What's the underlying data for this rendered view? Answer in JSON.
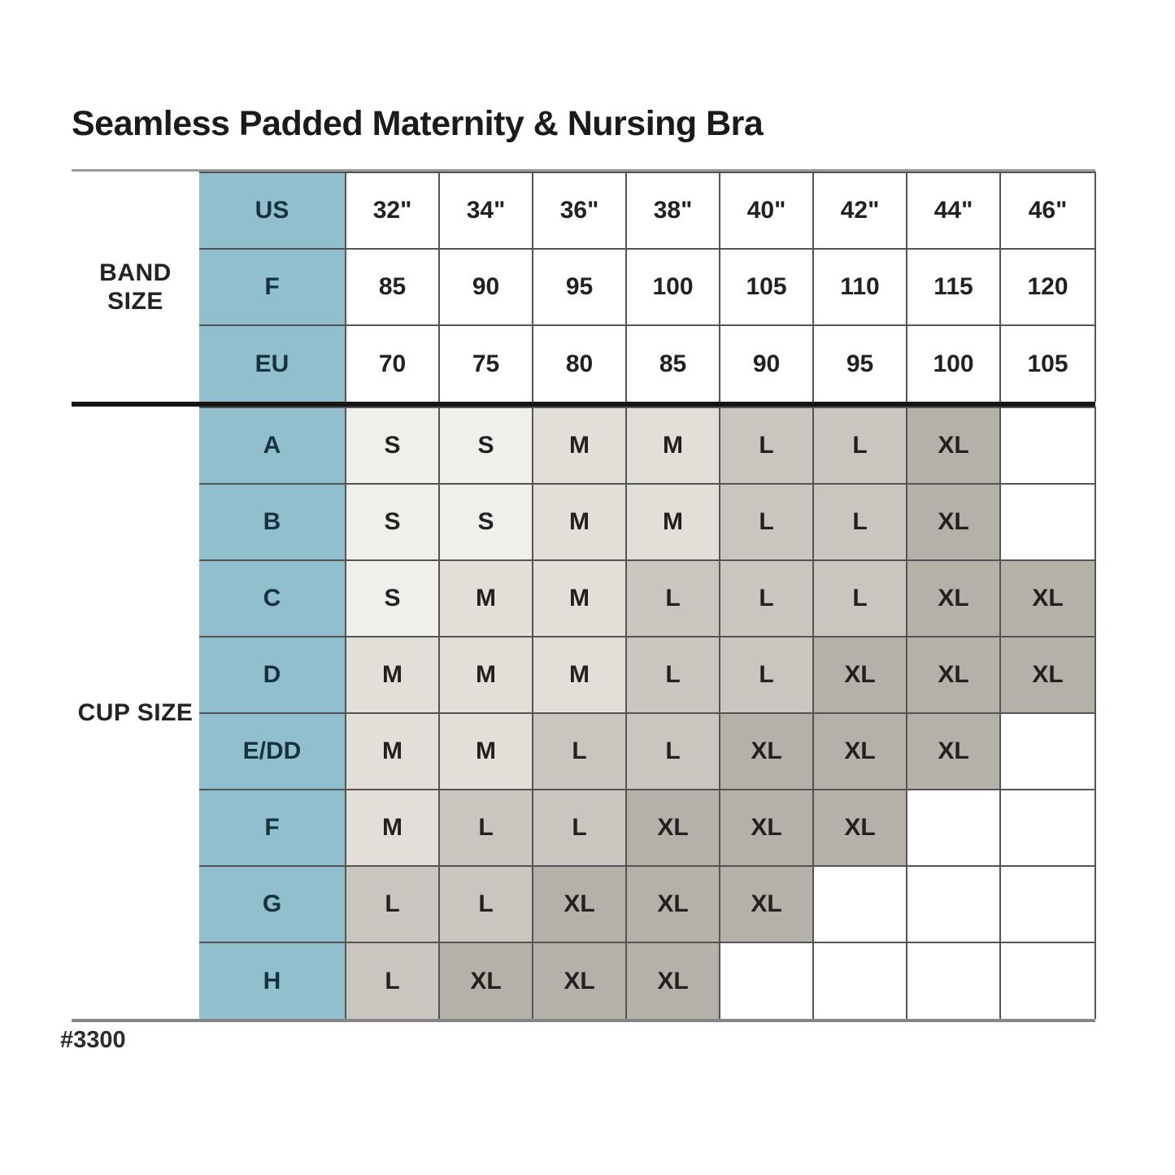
{
  "title": "Seamless Padded Maternity & Nursing Bra",
  "footnote": "#3300",
  "colors": {
    "header_blue": "#92bfcd",
    "grid_line": "#545454",
    "size_s": "#f1efeb",
    "size_m": "#e2dfd8",
    "size_l": "#cac6bf",
    "size_xl": "#b6b1a8",
    "divider_black": "#151515"
  },
  "chart_data": {
    "type": "table",
    "title": "Seamless Padded Maternity & Nursing Bra",
    "product_code": "#3300",
    "band_group_label": "BAND SIZE",
    "cup_group_label": "CUP SIZE",
    "band_rows": [
      {
        "label": "US",
        "values": [
          "32\"",
          "34\"",
          "36\"",
          "38\"",
          "40\"",
          "42\"",
          "44\"",
          "46\""
        ]
      },
      {
        "label": "F",
        "values": [
          "85",
          "90",
          "95",
          "100",
          "105",
          "110",
          "115",
          "120"
        ]
      },
      {
        "label": "EU",
        "values": [
          "70",
          "75",
          "80",
          "85",
          "90",
          "95",
          "100",
          "105"
        ]
      }
    ],
    "cup_rows": [
      {
        "label": "A",
        "values": [
          "S",
          "S",
          "M",
          "M",
          "L",
          "L",
          "XL",
          ""
        ]
      },
      {
        "label": "B",
        "values": [
          "S",
          "S",
          "M",
          "M",
          "L",
          "L",
          "XL",
          ""
        ]
      },
      {
        "label": "C",
        "values": [
          "S",
          "M",
          "M",
          "L",
          "L",
          "L",
          "XL",
          "XL"
        ]
      },
      {
        "label": "D",
        "values": [
          "M",
          "M",
          "M",
          "L",
          "L",
          "XL",
          "XL",
          "XL"
        ]
      },
      {
        "label": "E/DD",
        "values": [
          "M",
          "M",
          "L",
          "L",
          "XL",
          "XL",
          "XL",
          ""
        ]
      },
      {
        "label": "F",
        "values": [
          "M",
          "L",
          "L",
          "XL",
          "XL",
          "XL",
          "",
          ""
        ]
      },
      {
        "label": "G",
        "values": [
          "L",
          "L",
          "XL",
          "XL",
          "XL",
          "",
          "",
          ""
        ]
      },
      {
        "label": "H",
        "values": [
          "L",
          "XL",
          "XL",
          "XL",
          "",
          "",
          "",
          ""
        ]
      }
    ],
    "legend": "cell shading encodes garment size: S lightest gray, M light gray, L medium gray, XL dark gray, blank = not available"
  }
}
